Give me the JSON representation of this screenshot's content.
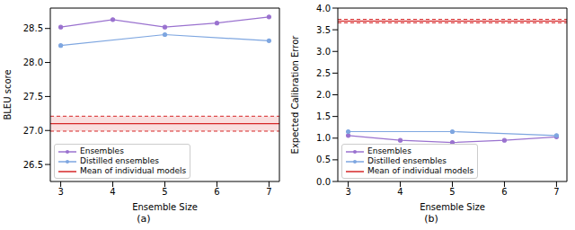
{
  "chart_data": [
    {
      "type": "line",
      "caption": "(a)",
      "x_label": "Ensemble Size",
      "y_label": "BLEU score",
      "x": [
        3,
        4,
        5,
        6,
        7
      ],
      "series": [
        {
          "name": "Ensembles",
          "color": "#9a72cf",
          "marker": "o",
          "values": [
            28.52,
            28.63,
            28.52,
            28.58,
            28.67
          ]
        },
        {
          "name": "Distilled ensembles",
          "color": "#7ea6e0",
          "marker": "o",
          "values": [
            28.25,
            null,
            28.41,
            null,
            28.32
          ]
        }
      ],
      "band": {
        "name": "Mean of individual models",
        "color": "#d62728",
        "value": 27.1,
        "lower": 26.99,
        "upper": 27.21
      },
      "xlim": [
        2.8,
        7.2
      ],
      "xticks": [
        3,
        4,
        5,
        6,
        7
      ],
      "ylim": [
        26.25,
        28.8
      ],
      "yticks": [
        26.5,
        {
          "value": 27,
          "label": "27.0"
        },
        27.5,
        {
          "value": 28,
          "label": "28.0"
        },
        28.5
      ],
      "legend": "lower left",
      "grid": false
    },
    {
      "type": "line",
      "caption": "(b)",
      "x_label": "Ensemble Size",
      "y_label": "Expected Calibration Error",
      "x": [
        3,
        4,
        5,
        6,
        7
      ],
      "series": [
        {
          "name": "Ensembles",
          "color": "#9a72cf",
          "marker": "o",
          "values": [
            1.06,
            0.95,
            0.9,
            0.95,
            1.03
          ]
        },
        {
          "name": "Distilled ensembles",
          "color": "#7ea6e0",
          "marker": "o",
          "values": [
            1.15,
            null,
            1.15,
            null,
            1.06
          ]
        }
      ],
      "band": {
        "name": "Mean of individual models",
        "color": "#d62728",
        "value": 3.7,
        "lower": 3.66,
        "upper": 3.74
      },
      "xlim": [
        2.8,
        7.2
      ],
      "xticks": [
        3,
        4,
        5,
        6,
        7
      ],
      "ylim": [
        0,
        4
      ],
      "yticks": [
        {
          "value": 0,
          "label": "0.0"
        },
        0.5,
        {
          "value": 1,
          "label": "1.0"
        },
        1.5,
        {
          "value": 2,
          "label": "2.0"
        },
        2.5,
        {
          "value": 3,
          "label": "3.0"
        },
        3.5,
        {
          "value": 4,
          "label": "4.0"
        }
      ],
      "legend": "lower left",
      "grid": false
    }
  ]
}
